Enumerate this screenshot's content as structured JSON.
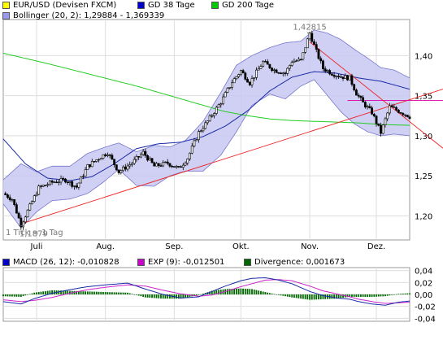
{
  "chart_data": [
    {
      "type": "line",
      "title": "EUR/USD (Devisen FXCM)",
      "note": "1 Tick = 1 Tag",
      "x_ticks": [
        "Juli",
        "Aug.",
        "Sep.",
        "Okt.",
        "Nov.",
        "Dez."
      ],
      "x_tick_days": [
        15,
        46,
        77,
        107,
        138,
        168
      ],
      "ylim": [
        1.17,
        1.445
      ],
      "y_ticks": [
        1.2,
        1.25,
        1.3,
        1.35,
        1.4
      ],
      "y_tick_labels": [
        "1,20",
        "1,25",
        "1,30",
        "1,35",
        "1,40"
      ],
      "grid": true,
      "legend": [
        {
          "name": "EUR/USD (Devisen FXCM)",
          "color": "#ffff00"
        },
        {
          "name": "GD 38 Tage",
          "color": "#0000cc"
        },
        {
          "name": "GD 200 Tage",
          "color": "#00cc00"
        },
        {
          "name": "Bollinger (20, 2): 1,29884 - 1,369339",
          "color": "#9999ee"
        }
      ],
      "annotations": [
        {
          "text": "1,42815",
          "x": 138,
          "y": 1.42815
        },
        {
          "text": "1,1879",
          "x": 8,
          "y": 1.1879
        }
      ],
      "price_keypoints": {
        "x": [
          0,
          4,
          8,
          12,
          16,
          22,
          28,
          33,
          38,
          44,
          47,
          52,
          58,
          63,
          68,
          74,
          79,
          83,
          88,
          92,
          98,
          103,
          107,
          111,
          117,
          122,
          127,
          130,
          134,
          138,
          141,
          144,
          148,
          152,
          156,
          159,
          162,
          166,
          170,
          174,
          178,
          183
        ],
        "y": [
          1.228,
          1.221,
          1.189,
          1.212,
          1.235,
          1.242,
          1.245,
          1.236,
          1.262,
          1.274,
          1.279,
          1.255,
          1.266,
          1.279,
          1.262,
          1.266,
          1.259,
          1.272,
          1.304,
          1.318,
          1.342,
          1.367,
          1.381,
          1.366,
          1.392,
          1.382,
          1.378,
          1.393,
          1.394,
          1.428,
          1.405,
          1.384,
          1.378,
          1.374,
          1.372,
          1.353,
          1.341,
          1.329,
          1.304,
          1.336,
          1.331,
          1.324
        ]
      },
      "series": [
        {
          "name": "GD 38 Tage",
          "color": "#1a2aa6",
          "x": [
            0,
            10,
            20,
            30,
            40,
            50,
            60,
            70,
            80,
            90,
            100,
            110,
            120,
            130,
            140,
            150,
            160,
            170,
            183
          ],
          "y": [
            1.296,
            1.265,
            1.247,
            1.244,
            1.249,
            1.265,
            1.284,
            1.29,
            1.292,
            1.299,
            1.312,
            1.331,
            1.356,
            1.373,
            1.38,
            1.378,
            1.372,
            1.368,
            1.358
          ]
        },
        {
          "name": "GD 200 Tage",
          "color": "#22cc22",
          "x": [
            0,
            20,
            40,
            60,
            80,
            100,
            110,
            120,
            130,
            140,
            150,
            160,
            170,
            183
          ],
          "y": [
            1.403,
            1.39,
            1.376,
            1.362,
            1.346,
            1.33,
            1.325,
            1.321,
            1.319,
            1.318,
            1.317,
            1.316,
            1.314,
            1.313
          ]
        },
        {
          "name": "Bollinger oben",
          "color": "#7777cc",
          "x": [
            0,
            8,
            15,
            22,
            30,
            38,
            45,
            52,
            60,
            68,
            75,
            82,
            90,
            98,
            105,
            112,
            120,
            127,
            134,
            140,
            146,
            152,
            158,
            164,
            170,
            176,
            183
          ],
          "y": [
            1.245,
            1.265,
            1.255,
            1.262,
            1.262,
            1.278,
            1.285,
            1.291,
            1.28,
            1.288,
            1.286,
            1.294,
            1.318,
            1.354,
            1.388,
            1.4,
            1.41,
            1.416,
            1.418,
            1.432,
            1.428,
            1.42,
            1.408,
            1.397,
            1.385,
            1.382,
            1.372
          ]
        },
        {
          "name": "Bollinger unten",
          "color": "#7777cc",
          "x": [
            0,
            8,
            15,
            22,
            30,
            38,
            45,
            52,
            60,
            68,
            75,
            82,
            90,
            98,
            105,
            112,
            120,
            127,
            134,
            140,
            146,
            152,
            158,
            164,
            170,
            176,
            183
          ],
          "y": [
            1.215,
            1.185,
            1.205,
            1.219,
            1.221,
            1.228,
            1.242,
            1.258,
            1.238,
            1.237,
            1.25,
            1.256,
            1.256,
            1.276,
            1.305,
            1.338,
            1.352,
            1.346,
            1.362,
            1.37,
            1.35,
            1.33,
            1.315,
            1.305,
            1.3,
            1.302,
            1.3
          ]
        }
      ],
      "trendlines": [
        {
          "color": "#ee2222",
          "x": [
            8,
            200
          ],
          "y": [
            1.19,
            1.36
          ]
        },
        {
          "color": "#ee2222",
          "x": [
            138,
            200
          ],
          "y": [
            1.417,
            1.28
          ]
        },
        {
          "color": "#dd00aa",
          "x": [
            155,
            200
          ],
          "y": [
            1.344,
            1.344
          ]
        }
      ]
    },
    {
      "type": "line",
      "title": "MACD (26, 12)",
      "ylim": [
        -0.045,
        0.045
      ],
      "y_ticks": [
        -0.04,
        -0.02,
        0.0,
        0.02,
        0.04
      ],
      "y_tick_labels": [
        "-0,04",
        "-0,02",
        "0,00",
        "0,02",
        "0,04"
      ],
      "grid": true,
      "legend": [
        {
          "name": "MACD (26, 12): -0,010828",
          "color": "#0000cc"
        },
        {
          "name": "EXP (9): -0,012501",
          "color": "#cc00cc"
        },
        {
          "name": "Divergence: 0,001673",
          "color": "#006600"
        }
      ],
      "series": [
        {
          "name": "MACD (26, 12)",
          "color": "#1a2aa6",
          "x": [
            0,
            8,
            14,
            22,
            30,
            38,
            46,
            56,
            64,
            72,
            80,
            88,
            94,
            100,
            107,
            112,
            118,
            124,
            130,
            138,
            144,
            150,
            156,
            160,
            166,
            172,
            178,
            183
          ],
          "y": [
            -0.012,
            -0.016,
            -0.007,
            0.002,
            0.008,
            0.013,
            0.016,
            0.019,
            0.009,
            0.0,
            -0.006,
            -0.004,
            0.005,
            0.014,
            0.023,
            0.027,
            0.028,
            0.024,
            0.018,
            0.005,
            -0.002,
            -0.006,
            -0.008,
            -0.012,
            -0.016,
            -0.018,
            -0.013,
            -0.011
          ]
        },
        {
          "name": "EXP (9)",
          "color": "#cc22cc",
          "x": [
            0,
            8,
            14,
            22,
            30,
            38,
            46,
            56,
            64,
            72,
            80,
            88,
            94,
            100,
            107,
            112,
            118,
            124,
            130,
            138,
            144,
            150,
            156,
            160,
            166,
            172,
            178,
            183
          ],
          "y": [
            -0.009,
            -0.012,
            -0.01,
            -0.005,
            0.002,
            0.008,
            0.012,
            0.016,
            0.014,
            0.007,
            0.001,
            -0.003,
            -0.001,
            0.005,
            0.013,
            0.018,
            0.024,
            0.025,
            0.023,
            0.014,
            0.006,
            0.001,
            -0.004,
            -0.008,
            -0.012,
            -0.015,
            -0.014,
            -0.013
          ]
        }
      ]
    }
  ]
}
